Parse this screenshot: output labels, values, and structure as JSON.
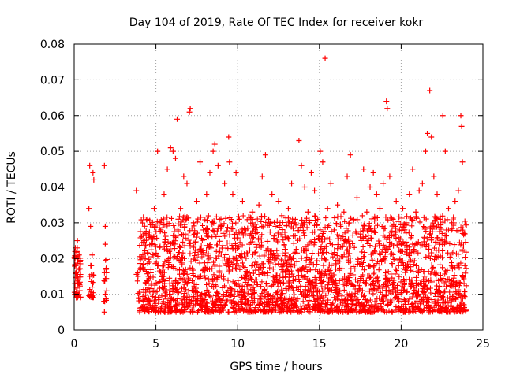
{
  "chart_data": {
    "type": "scatter",
    "title": "Day 104 of 2019, Rate Of TEC Index for receiver kokr",
    "xlabel": "GPS time / hours",
    "ylabel": "ROTI / TECUs",
    "xlim": [
      0,
      25
    ],
    "ylim": [
      0,
      0.08
    ],
    "xticks": [
      0,
      5,
      10,
      15,
      20,
      25
    ],
    "yticks": [
      0,
      0.01,
      0.02,
      0.03,
      0.04,
      0.05,
      0.06,
      0.07,
      0.08
    ],
    "xtick_labels": [
      "0",
      "5",
      "10",
      "15",
      "20",
      "25"
    ],
    "ytick_labels": [
      "0",
      "0.01",
      "0.02",
      "0.03",
      "0.04",
      "0.05",
      "0.06",
      "0.07",
      "0.08"
    ],
    "grid": true,
    "marker": "+",
    "marker_color": "#ff0000",
    "series": [
      {
        "name": "ROTI",
        "color": "#ff0000",
        "points": [
          [
            0.05,
            0.012
          ],
          [
            0.1,
            0.018
          ],
          [
            0.15,
            0.009
          ],
          [
            0.2,
            0.025
          ],
          [
            0.25,
            0.014
          ],
          [
            0.3,
            0.021
          ],
          [
            0.35,
            0.011
          ],
          [
            0.1,
            0.016
          ],
          [
            0.2,
            0.013
          ],
          [
            0.05,
            0.02
          ],
          [
            0.9,
            0.034
          ],
          [
            0.95,
            0.046
          ],
          [
            1.0,
            0.029
          ],
          [
            1.05,
            0.018
          ],
          [
            1.1,
            0.012
          ],
          [
            1.15,
            0.044
          ],
          [
            1.2,
            0.042
          ],
          [
            1.0,
            0.01
          ],
          [
            1.1,
            0.021
          ],
          [
            0.95,
            0.015
          ],
          [
            1.85,
            0.046
          ],
          [
            1.9,
            0.029
          ],
          [
            1.95,
            0.017
          ],
          [
            1.9,
            0.01
          ],
          [
            1.85,
            0.005
          ],
          [
            1.9,
            0.024
          ],
          [
            3.8,
            0.039
          ],
          [
            3.9,
            0.015
          ],
          [
            3.95,
            0.009
          ],
          [
            4.3,
            0.025
          ],
          [
            4.5,
            0.031
          ],
          [
            4.7,
            0.016
          ],
          [
            4.9,
            0.034
          ],
          [
            5.1,
            0.05
          ],
          [
            5.3,
            0.028
          ],
          [
            5.5,
            0.038
          ],
          [
            5.7,
            0.045
          ],
          [
            5.9,
            0.051
          ],
          [
            6.05,
            0.05
          ],
          [
            6.2,
            0.048
          ],
          [
            6.3,
            0.059
          ],
          [
            6.5,
            0.034
          ],
          [
            6.7,
            0.043
          ],
          [
            6.9,
            0.041
          ],
          [
            7.05,
            0.061
          ],
          [
            7.1,
            0.062
          ],
          [
            7.3,
            0.03
          ],
          [
            7.5,
            0.036
          ],
          [
            7.7,
            0.047
          ],
          [
            7.9,
            0.028
          ],
          [
            8.1,
            0.038
          ],
          [
            8.3,
            0.044
          ],
          [
            8.5,
            0.05
          ],
          [
            8.6,
            0.052
          ],
          [
            8.8,
            0.046
          ],
          [
            9.0,
            0.029
          ],
          [
            9.2,
            0.041
          ],
          [
            9.45,
            0.054
          ],
          [
            9.5,
            0.047
          ],
          [
            9.7,
            0.038
          ],
          [
            9.9,
            0.044
          ],
          [
            10.1,
            0.031
          ],
          [
            10.3,
            0.036
          ],
          [
            10.5,
            0.028
          ],
          [
            10.7,
            0.024
          ],
          [
            10.9,
            0.033
          ],
          [
            11.1,
            0.027
          ],
          [
            11.3,
            0.035
          ],
          [
            11.5,
            0.043
          ],
          [
            11.7,
            0.049
          ],
          [
            11.9,
            0.031
          ],
          [
            12.1,
            0.038
          ],
          [
            12.3,
            0.029
          ],
          [
            12.5,
            0.036
          ],
          [
            12.7,
            0.032
          ],
          [
            12.9,
            0.026
          ],
          [
            13.1,
            0.034
          ],
          [
            13.3,
            0.041
          ],
          [
            13.5,
            0.03
          ],
          [
            13.75,
            0.053
          ],
          [
            13.9,
            0.046
          ],
          [
            14.1,
            0.04
          ],
          [
            14.3,
            0.033
          ],
          [
            14.5,
            0.044
          ],
          [
            14.7,
            0.039
          ],
          [
            14.9,
            0.031
          ],
          [
            15.05,
            0.05
          ],
          [
            15.2,
            0.047
          ],
          [
            15.35,
            0.076
          ],
          [
            15.5,
            0.034
          ],
          [
            15.7,
            0.041
          ],
          [
            15.9,
            0.028
          ],
          [
            16.1,
            0.035
          ],
          [
            16.3,
            0.029
          ],
          [
            16.5,
            0.033
          ],
          [
            16.7,
            0.043
          ],
          [
            16.9,
            0.049
          ],
          [
            17.1,
            0.031
          ],
          [
            17.3,
            0.037
          ],
          [
            17.5,
            0.026
          ],
          [
            17.7,
            0.045
          ],
          [
            17.9,
            0.033
          ],
          [
            18.1,
            0.04
          ],
          [
            18.3,
            0.044
          ],
          [
            18.5,
            0.038
          ],
          [
            18.7,
            0.034
          ],
          [
            18.9,
            0.041
          ],
          [
            19.1,
            0.064
          ],
          [
            19.15,
            0.062
          ],
          [
            19.3,
            0.043
          ],
          [
            19.5,
            0.031
          ],
          [
            19.7,
            0.036
          ],
          [
            19.9,
            0.028
          ],
          [
            20.1,
            0.034
          ],
          [
            20.3,
            0.03
          ],
          [
            20.5,
            0.038
          ],
          [
            20.7,
            0.045
          ],
          [
            20.9,
            0.033
          ],
          [
            21.1,
            0.039
          ],
          [
            21.3,
            0.041
          ],
          [
            21.5,
            0.05
          ],
          [
            21.6,
            0.055
          ],
          [
            21.75,
            0.067
          ],
          [
            21.85,
            0.054
          ],
          [
            22.0,
            0.043
          ],
          [
            22.2,
            0.038
          ],
          [
            22.4,
            0.031
          ],
          [
            22.55,
            0.06
          ],
          [
            22.7,
            0.05
          ],
          [
            22.9,
            0.034
          ],
          [
            23.1,
            0.03
          ],
          [
            23.3,
            0.036
          ],
          [
            23.5,
            0.039
          ],
          [
            23.65,
            0.06
          ],
          [
            23.7,
            0.057
          ],
          [
            23.75,
            0.047
          ],
          [
            23.85,
            0.027
          ],
          [
            23.9,
            0.018
          ]
        ]
      }
    ]
  }
}
